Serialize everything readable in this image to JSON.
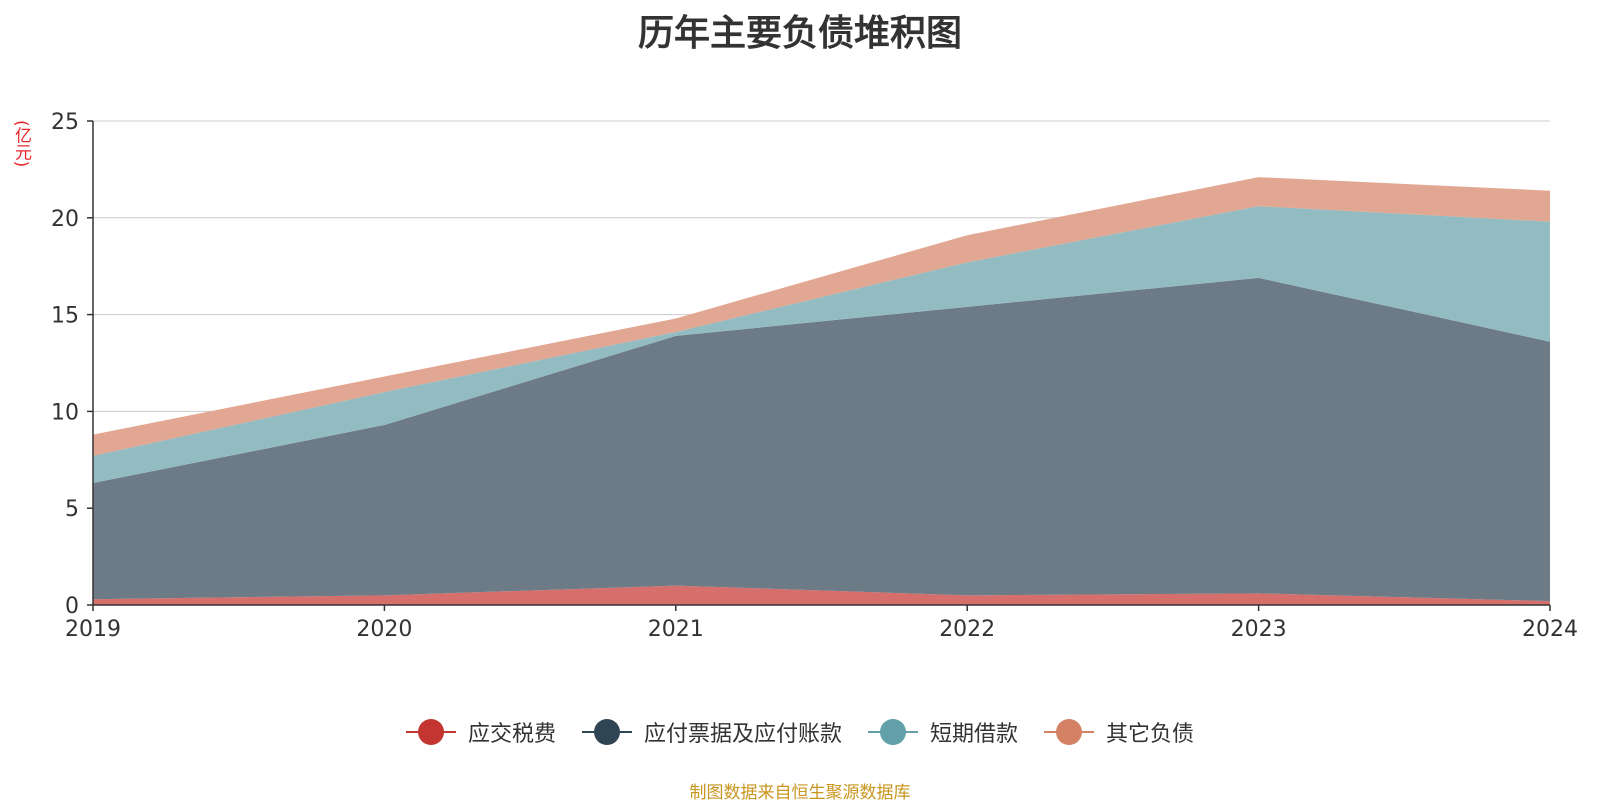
{
  "chart_data": {
    "type": "area",
    "stacked": true,
    "title": "历年主要负债堆积图",
    "ylabel": "(亿元)",
    "xlabel": "",
    "categories": [
      "2019",
      "2020",
      "2021",
      "2022",
      "2023",
      "2024"
    ],
    "ylim": [
      0,
      25
    ],
    "yticks": [
      0,
      5,
      10,
      15,
      20,
      25
    ],
    "grid": true,
    "legend_position": "bottom",
    "series": [
      {
        "name": "应交税费",
        "color": "#c23531",
        "fill": "#d66e6b",
        "values": [
          0.3,
          0.5,
          1.0,
          0.5,
          0.6,
          0.2
        ]
      },
      {
        "name": "应付票据及应付账款",
        "color": "#2f4554",
        "fill": "#6d7b87",
        "values": [
          6.0,
          8.8,
          12.9,
          14.9,
          16.3,
          13.4
        ]
      },
      {
        "name": "短期借款",
        "color": "#61a0a8",
        "fill": "#93bcc2",
        "values": [
          1.4,
          1.7,
          0.2,
          2.3,
          3.7,
          6.2
        ]
      },
      {
        "name": "其它负债",
        "color": "#d48265",
        "fill": "#e1a793",
        "values": [
          1.1,
          0.8,
          0.7,
          1.4,
          1.5,
          1.6
        ]
      }
    ],
    "source": "制图数据来自恒生聚源数据库"
  },
  "colors": {
    "unit_label": "#e8252b",
    "source_text": "#c8961e",
    "axis": "#333333",
    "grid": "#cccccc"
  }
}
